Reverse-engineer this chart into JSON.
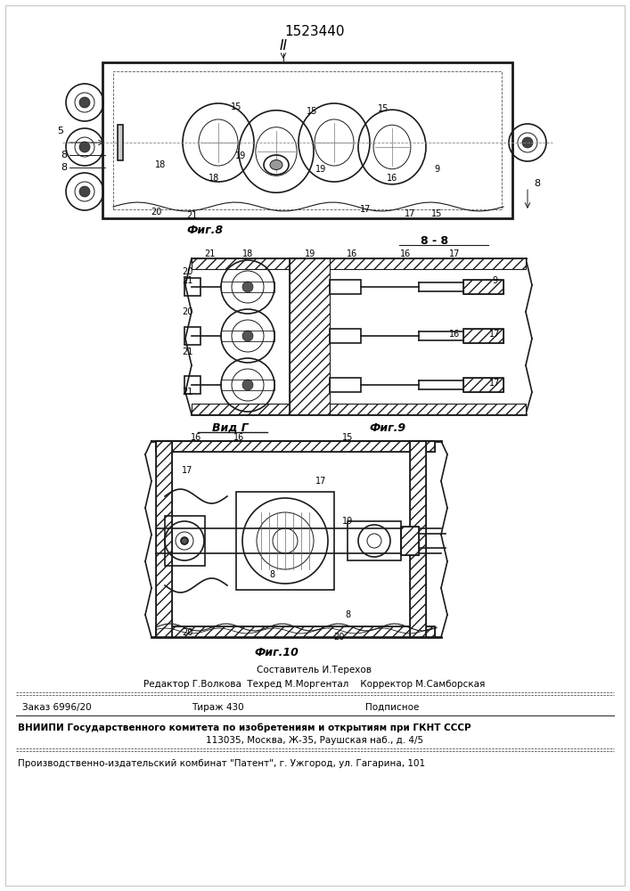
{
  "patent_number": "1523440",
  "background_color": "#ffffff",
  "fig_width": 7.07,
  "fig_height": 10.0,
  "line_color": "#1a1a1a",
  "fig8_label": "Фиг.8",
  "fig9_label": "Фиг.9",
  "fig10_label": "Фиг.10",
  "view_label": "Вид Г",
  "section_label": "8 - 8",
  "footer_sestavitel": "Составитель И.Терехов",
  "footer_editor": "Редактор Г.Волкова  Техред М.Моргентал    Корректор М.Самборская",
  "footer_zakaz": "Заказ 6996/20",
  "footer_tirazh": "Тираж 430",
  "footer_podpisnoe": "Подписное",
  "footer_vniipи": "ВНИИПИ Государственного комитета по изобретениям и открытиям при ГКНТ СССР",
  "footer_addr": "113035, Москва, Ж-35, Раушская наб., д. 4/5",
  "footer_patent": "Производственно-издательский комбинат \"Патент\", г. Ужгород, ул. Гагарина, 101"
}
